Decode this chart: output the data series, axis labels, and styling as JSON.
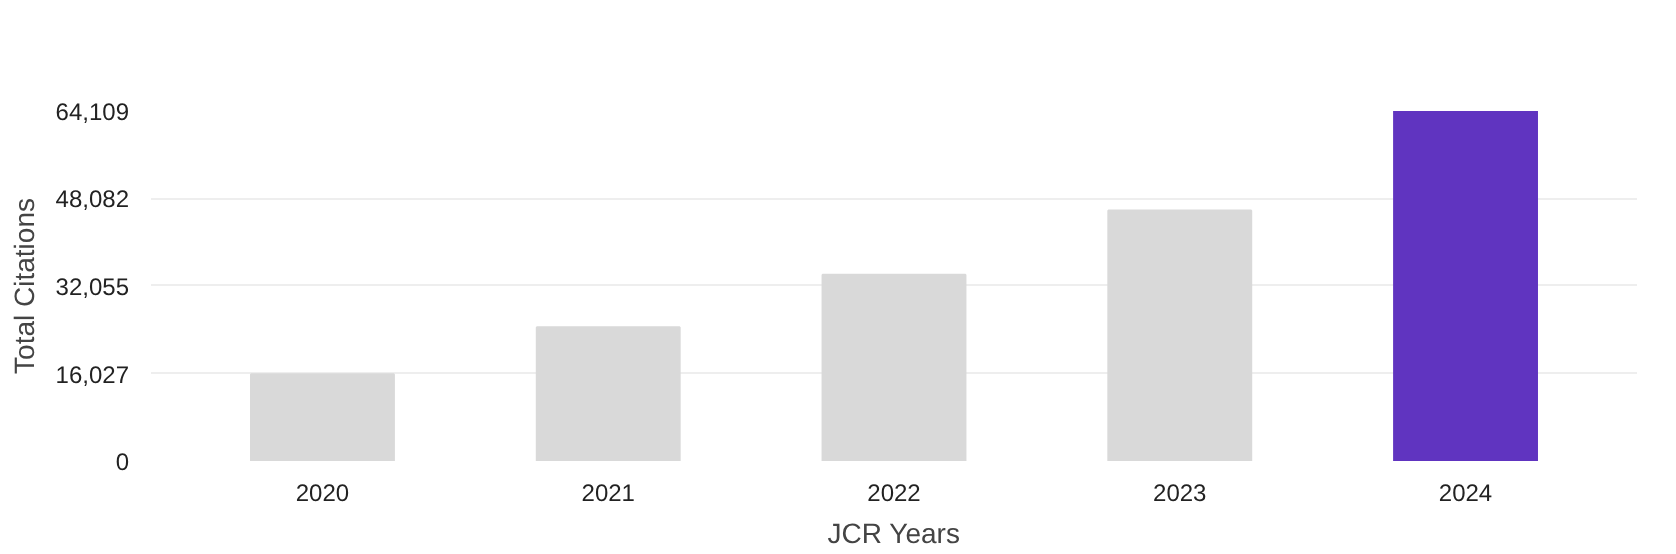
{
  "chart_data": {
    "type": "bar",
    "xlabel": "JCR Years",
    "ylabel": "Total Citations",
    "categories": [
      "2020",
      "2021",
      "2022",
      "2023",
      "2024"
    ],
    "values": [
      15900,
      24500,
      34100,
      45900,
      64109
    ],
    "colors": [
      "#d9d9d9",
      "#d9d9d9",
      "#d9d9d9",
      "#d9d9d9",
      "#6034c0"
    ],
    "ylim": [
      0,
      64109
    ],
    "yticks": [
      0,
      {
        "value": 16027,
        "label": "16,027"
      },
      {
        "value": 32055,
        "label": "32,055"
      },
      {
        "value": 48082,
        "label": "48,082"
      },
      {
        "value": 64109,
        "label": "64,109"
      }
    ],
    "grid": "y"
  }
}
